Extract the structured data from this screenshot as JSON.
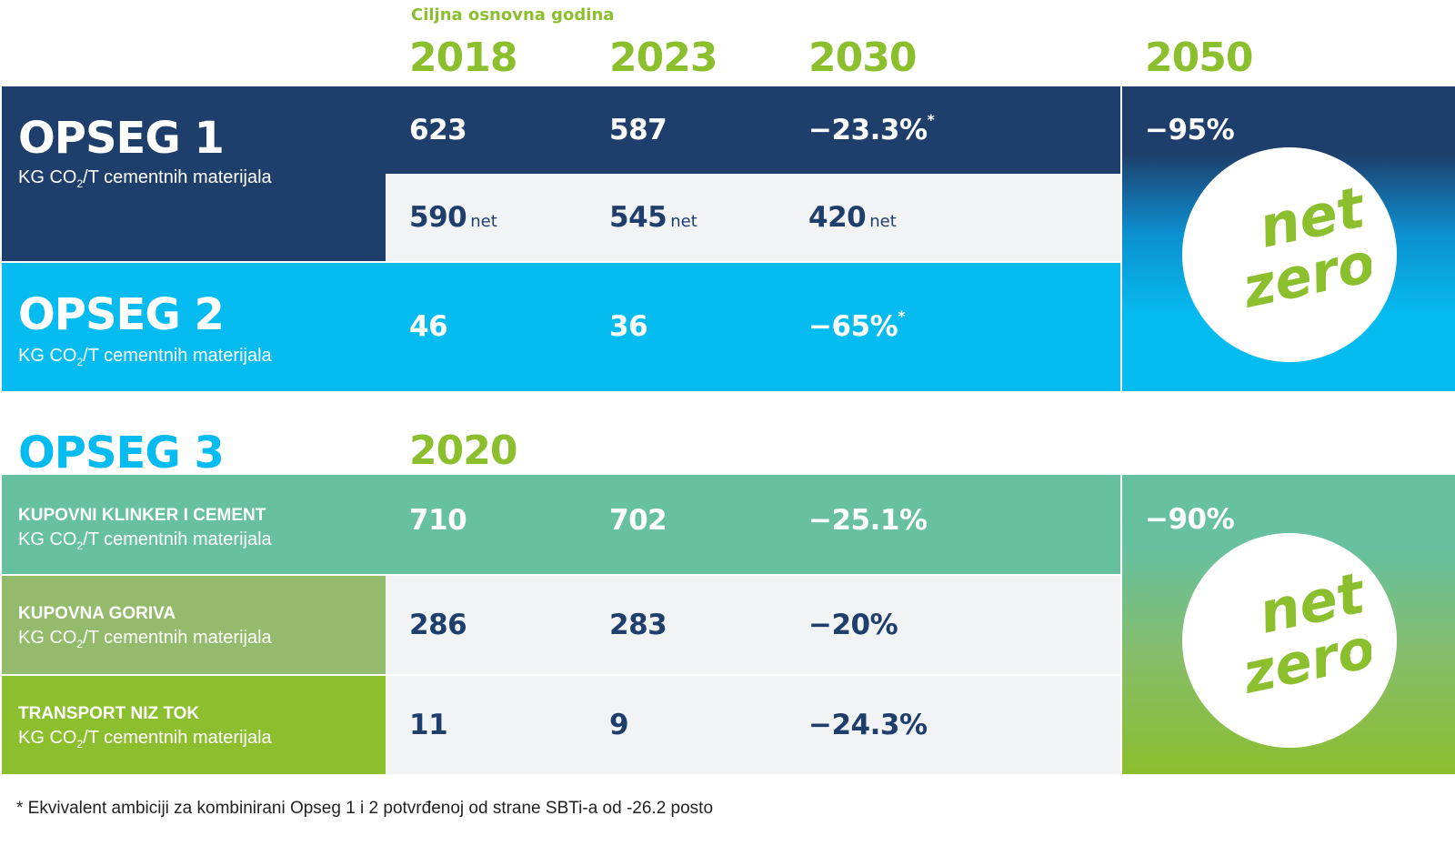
{
  "header": {
    "baseline_label": "Ciljna osnovna godina",
    "years": [
      "2018",
      "2023",
      "2030",
      "2050"
    ]
  },
  "scope1": {
    "title": "OPSEG 1",
    "unit_prefix": "KG CO",
    "unit_sub": "2",
    "unit_suffix": "/T cementnih materijala",
    "gross": {
      "y2018": "623",
      "y2023": "587",
      "y2030": "−23.3%",
      "y2030_mark": "*"
    },
    "net": {
      "y2018": "590",
      "y2023": "545",
      "y2030": "420",
      "net_label": "net"
    }
  },
  "scope2": {
    "title": "OPSEG 2",
    "unit_prefix": "KG CO",
    "unit_sub": "2",
    "unit_suffix": "/T cementnih materijala",
    "values": {
      "y2018": "46",
      "y2023": "36",
      "y2030": "−65%",
      "y2030_mark": "*"
    }
  },
  "scope12_2050": {
    "value": "−95%",
    "badge_line1": "net",
    "badge_line2": "zero"
  },
  "scope3": {
    "title": "OPSEG 3",
    "base_year": "2020",
    "rows": [
      {
        "title": "KUPOVNI KLINKER I CEMENT",
        "unit_prefix": "KG CO",
        "unit_sub": "2",
        "unit_suffix": "/T cementnih materijala",
        "base": "710",
        "y2023": "702",
        "y2030": "−25.1%"
      },
      {
        "title": "KUPOVNA GORIVA",
        "unit_prefix": "KG CO",
        "unit_sub": "2",
        "unit_suffix": "/T cementnih materijala",
        "base": "286",
        "y2023": "283",
        "y2030": "−20%"
      },
      {
        "title": "TRANSPORT NIZ TOK",
        "unit_prefix": "KG CO",
        "unit_sub": "2",
        "unit_suffix": "/T cementnih materijala",
        "base": "11",
        "y2023": "9",
        "y2030": "−24.3%"
      }
    ],
    "y2050": {
      "value": "−90%",
      "badge_line1": "net",
      "badge_line2": "zero"
    }
  },
  "footnote": "* Ekvivalent ambiciji za kombinirani Opseg 1 i 2 potvrđenoj od strane SBTi-a od -26.2 posto",
  "colors": {
    "navy": "#1e3e6b",
    "cyan": "#06bbef",
    "teal": "#67c09f",
    "olive": "#94bb6b",
    "lime": "#8cbf2e",
    "light": "#f2f3f4"
  }
}
